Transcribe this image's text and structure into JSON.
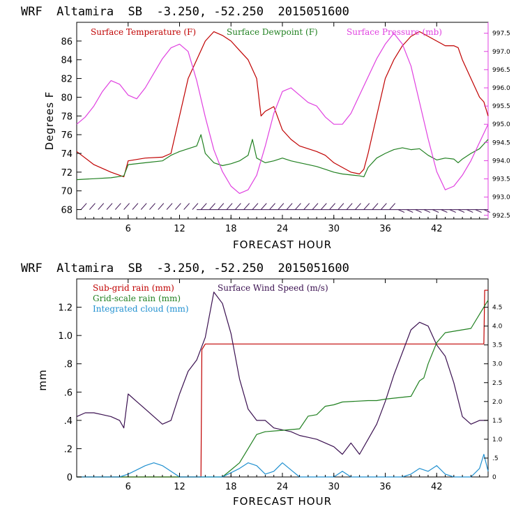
{
  "chart_data": [
    {
      "type": "line",
      "header": "WRF  Altamira  SB  -3.250, -52.250  2015051600",
      "xlabel": "FORECAST HOUR",
      "ylabel": "Degrees F",
      "xlim": [
        0,
        48
      ],
      "ylim": [
        67,
        88
      ],
      "xticks": [
        6,
        12,
        18,
        24,
        30,
        36,
        42
      ],
      "yticks": [
        68,
        70,
        72,
        74,
        76,
        78,
        80,
        82,
        84,
        86
      ],
      "right_axis": {
        "ylim": [
          992.4,
          997.8
        ],
        "ticks": [
          "992.5",
          "993.0",
          "993.5",
          "994.0",
          "994.5",
          "995.0",
          "995.5",
          "996.0",
          "996.5",
          "997.0",
          "997.5"
        ],
        "color": "#e040e0"
      },
      "legend": [
        "Surface Temperature (F)",
        "Surface Dewpoint (F)",
        "Surface Pressure (mb)"
      ],
      "series": [
        {
          "name": "Surface Temperature (F)",
          "color": "#c00000",
          "axis": "left",
          "x": [
            0,
            2,
            4,
            5.5,
            6,
            8,
            10,
            11,
            12,
            13,
            14,
            15,
            16,
            17,
            18,
            19,
            20,
            21,
            21.5,
            22,
            23,
            24,
            25,
            26,
            27,
            28,
            29,
            30,
            31,
            32,
            33,
            33.5,
            34,
            35,
            36,
            37,
            38,
            39,
            40,
            41,
            42,
            43,
            44,
            44.5,
            45,
            46,
            47,
            47.5,
            48
          ],
          "y": [
            74.2,
            72.8,
            72,
            71.5,
            73.2,
            73.5,
            73.6,
            74,
            78,
            82,
            84,
            86,
            87,
            86.6,
            86,
            85,
            84,
            82,
            78,
            78.5,
            79,
            76.5,
            75.5,
            74.8,
            74.5,
            74.2,
            73.8,
            73,
            72.5,
            72,
            71.8,
            72.3,
            74,
            78,
            82,
            84,
            85.5,
            86.5,
            87,
            86.5,
            86,
            85.5,
            85.5,
            85.3,
            84,
            82,
            80,
            79.5,
            78
          ]
        },
        {
          "name": "Surface Dewpoint (F)",
          "color": "#208020",
          "axis": "left",
          "x": [
            0,
            2,
            4,
            5.5,
            6,
            8,
            10,
            11,
            12,
            13,
            14,
            14.5,
            15,
            16,
            17,
            18,
            19,
            20,
            20.5,
            21,
            22,
            23,
            24,
            25,
            26,
            27,
            28,
            29,
            30,
            31,
            32,
            33,
            33.5,
            34,
            35,
            36,
            37,
            38,
            39,
            40,
            41,
            42,
            43,
            44,
            44.5,
            45,
            46,
            47,
            47.5,
            48
          ],
          "y": [
            71.2,
            71.3,
            71.4,
            71.6,
            72.8,
            73,
            73.2,
            73.8,
            74.2,
            74.5,
            74.8,
            76,
            74,
            73,
            72.7,
            72.9,
            73.2,
            73.8,
            75.5,
            73.5,
            73,
            73.2,
            73.5,
            73.2,
            73,
            72.8,
            72.6,
            72.3,
            72,
            71.8,
            71.7,
            71.6,
            71.5,
            72.5,
            73.5,
            74,
            74.4,
            74.6,
            74.4,
            74.5,
            73.8,
            73.3,
            73.5,
            73.4,
            73,
            73.4,
            74,
            74.5,
            75,
            75.5
          ]
        },
        {
          "name": "Surface Pressure (mb)",
          "color": "#e040e0",
          "axis": "right",
          "x": [
            0,
            1,
            2,
            3,
            4,
            5,
            6,
            7,
            8,
            9,
            10,
            11,
            12,
            13,
            14,
            15,
            16,
            17,
            18,
            19,
            20,
            21,
            22,
            23,
            24,
            25,
            26,
            27,
            28,
            29,
            30,
            31,
            32,
            33,
            34,
            35,
            36,
            37,
            38,
            39,
            40,
            41,
            42,
            43,
            44,
            45,
            46,
            47,
            48
          ],
          "y": [
            995,
            995.2,
            995.5,
            995.9,
            996.2,
            996.1,
            995.8,
            995.7,
            996,
            996.4,
            996.8,
            997.1,
            997.2,
            997,
            996.2,
            995.2,
            994.3,
            993.7,
            993.3,
            993.1,
            993.2,
            993.6,
            994.4,
            995.3,
            995.9,
            996.0,
            995.8,
            995.6,
            995.5,
            995.2,
            995.0,
            995.0,
            995.3,
            995.8,
            996.3,
            996.8,
            997.2,
            997.5,
            997.2,
            996.6,
            995.6,
            994.6,
            993.7,
            993.2,
            993.3,
            993.6,
            994.0,
            994.5,
            995.0
          ]
        }
      ],
      "wind_barbs": {
        "color": "#3a1050",
        "note": "surface wind barbs along y=68"
      }
    },
    {
      "type": "line",
      "header": "WRF  Altamira  SB  -3.250, -52.250  2015051600",
      "xlabel": "FORECAST HOUR",
      "ylabel": "mm",
      "xlim": [
        0,
        48
      ],
      "ylim": [
        0,
        1.4
      ],
      "xticks": [
        6,
        12,
        18,
        24,
        30,
        36,
        42
      ],
      "yticks": [
        0,
        0.2,
        0.4,
        0.6,
        0.8,
        1.0,
        1.2
      ],
      "ytick_labels": [
        "0",
        ".2",
        ".4",
        ".6",
        ".8",
        "1.0",
        "1.2"
      ],
      "right_axis": {
        "ylim": [
          0,
          5.25
        ],
        "ticks": [
          "0",
          ".5",
          "1.0",
          "1.5",
          "2.0",
          "2.5",
          "3.0",
          "3.5",
          "4.0",
          "4.5"
        ]
      },
      "legend": [
        "Sub-grid rain (mm)",
        "Surface Wind Speed (m/s)",
        "Grid-scale rain (mm)",
        "Integrated cloud (mm)"
      ],
      "series": [
        {
          "name": "Sub-grid rain (mm)",
          "color": "#c00000",
          "axis": "left",
          "x": [
            0,
            14.5,
            14.6,
            15,
            47.5,
            47.6,
            48
          ],
          "y": [
            0,
            0,
            0.9,
            0.94,
            0.94,
            1.32,
            1.32
          ]
        },
        {
          "name": "Surface Wind Speed (m/s)",
          "color": "#3a1050",
          "axis": "right",
          "x": [
            0,
            1,
            2,
            3,
            4,
            5,
            5.5,
            6,
            7,
            8,
            9,
            10,
            11,
            12,
            13,
            14,
            15,
            16,
            17,
            18,
            19,
            20,
            21,
            22,
            23,
            24,
            25,
            26,
            27,
            28,
            29,
            30,
            31,
            32,
            33,
            34,
            35,
            36,
            37,
            38,
            39,
            40,
            41,
            42,
            43,
            44,
            45,
            46,
            47,
            48
          ],
          "y": [
            1.6,
            1.7,
            1.7,
            1.65,
            1.6,
            1.5,
            1.3,
            2.2,
            2.0,
            1.8,
            1.6,
            1.4,
            1.5,
            2.2,
            2.8,
            3.1,
            3.7,
            4.9,
            4.6,
            3.8,
            2.6,
            1.8,
            1.5,
            1.5,
            1.3,
            1.25,
            1.2,
            1.1,
            1.05,
            1.0,
            0.9,
            0.8,
            0.6,
            0.9,
            0.6,
            1.0,
            1.4,
            2.0,
            2.7,
            3.3,
            3.9,
            4.1,
            4.0,
            3.5,
            3.2,
            2.5,
            1.6,
            1.4,
            1.5,
            1.5
          ]
        },
        {
          "name": "Grid-scale rain (mm)",
          "color": "#208020",
          "axis": "left",
          "x": [
            0,
            17,
            18,
            19,
            20,
            21,
            22,
            24,
            26,
            27,
            28,
            29,
            30,
            31,
            34,
            35,
            36,
            39,
            40,
            40.5,
            41,
            42,
            43,
            45,
            46,
            47,
            48
          ],
          "y": [
            0,
            0,
            0.05,
            0.1,
            0.2,
            0.3,
            0.32,
            0.33,
            0.34,
            0.43,
            0.44,
            0.5,
            0.51,
            0.53,
            0.54,
            0.54,
            0.55,
            0.57,
            0.68,
            0.7,
            0.8,
            0.95,
            1.02,
            1.04,
            1.05,
            1.15,
            1.25
          ]
        },
        {
          "name": "Integrated cloud (mm)",
          "color": "#2090d0",
          "axis": "left",
          "x": [
            0,
            5,
            6,
            7,
            8,
            9,
            10,
            11,
            12,
            17,
            18,
            19,
            20,
            21,
            22,
            23,
            24,
            25,
            26,
            30,
            31,
            32,
            38,
            39,
            40,
            41,
            42,
            43,
            44,
            46,
            47,
            47.5,
            48
          ],
          "y": [
            0,
            0,
            0.02,
            0.05,
            0.08,
            0.1,
            0.08,
            0.04,
            0,
            0,
            0.03,
            0.06,
            0.1,
            0.08,
            0.02,
            0.04,
            0.1,
            0.05,
            0,
            0,
            0.04,
            0,
            0,
            0.02,
            0.06,
            0.04,
            0.08,
            0.02,
            0,
            0,
            0.06,
            0.16,
            0.04
          ]
        }
      ]
    }
  ]
}
